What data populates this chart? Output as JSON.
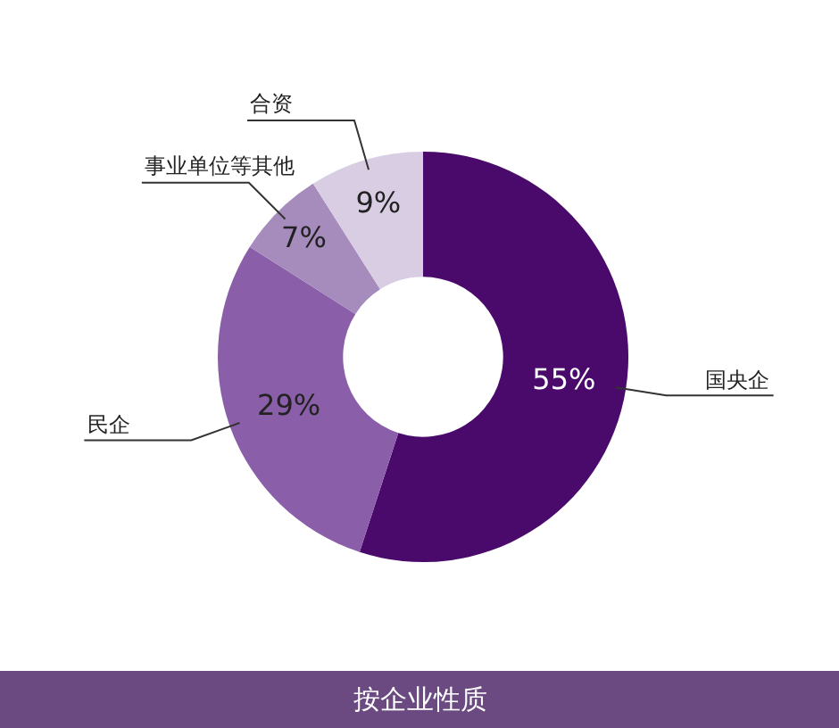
{
  "chart_data": {
    "type": "donut",
    "title": "按企业性质",
    "categories": [
      "国央企",
      "民企",
      "事业单位等其他",
      "合资"
    ],
    "values": [
      55,
      29,
      7,
      9
    ],
    "value_labels": [
      "55%",
      "29%",
      "7%",
      "9%"
    ],
    "colors": [
      "#4a0a6b",
      "#8a5ea8",
      "#a68bbd",
      "#d8cde3"
    ],
    "legend": false
  }
}
